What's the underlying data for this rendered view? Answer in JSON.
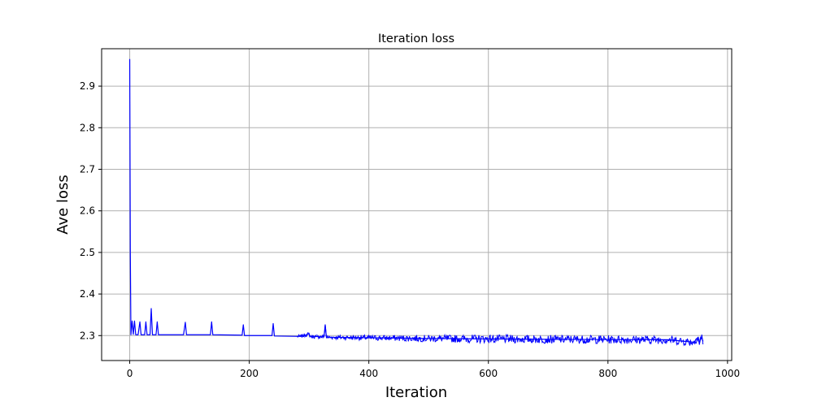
{
  "chart_data": {
    "type": "line",
    "title": "Iteration loss",
    "xlabel": "Iteration",
    "ylabel": "Ave loss",
    "xlim": [
      -47,
      1007
    ],
    "ylim": [
      2.24,
      2.99
    ],
    "xticks": [
      0,
      200,
      400,
      600,
      800,
      1000
    ],
    "yticks": [
      2.3,
      2.4,
      2.5,
      2.6,
      2.7,
      2.8,
      2.9
    ],
    "grid": true,
    "line_color": "#0000ff",
    "series": [
      {
        "points": [
          [
            0,
            2.965
          ],
          [
            1,
            2.5
          ],
          [
            2,
            2.302
          ],
          [
            4,
            2.335
          ],
          [
            6,
            2.303
          ],
          [
            8,
            2.335
          ],
          [
            10,
            2.302
          ],
          [
            14,
            2.302
          ],
          [
            17,
            2.333
          ],
          [
            19,
            2.302
          ],
          [
            25,
            2.302
          ],
          [
            27,
            2.333
          ],
          [
            29,
            2.302
          ],
          [
            34,
            2.302
          ],
          [
            36,
            2.365
          ],
          [
            38,
            2.302
          ],
          [
            44,
            2.302
          ],
          [
            46,
            2.333
          ],
          [
            48,
            2.302
          ],
          [
            90,
            2.302
          ],
          [
            93,
            2.332
          ],
          [
            95,
            2.302
          ],
          [
            135,
            2.302
          ],
          [
            137,
            2.333
          ],
          [
            139,
            2.302
          ],
          [
            188,
            2.301
          ],
          [
            190,
            2.326
          ],
          [
            192,
            2.3
          ],
          [
            238,
            2.3
          ],
          [
            240,
            2.329
          ],
          [
            242,
            2.299
          ],
          [
            286,
            2.298
          ],
          [
            300,
            2.304
          ],
          [
            302,
            2.298
          ],
          [
            325,
            2.297
          ],
          [
            327,
            2.326
          ],
          [
            329,
            2.296
          ],
          [
            500,
            2.293
          ],
          [
            700,
            2.291
          ],
          [
            900,
            2.29
          ],
          [
            945,
            2.284
          ],
          [
            947,
            2.291
          ],
          [
            951,
            2.296
          ],
          [
            953,
            2.28
          ],
          [
            955,
            2.293
          ],
          [
            957,
            2.296
          ],
          [
            959,
            2.286
          ]
        ]
      }
    ]
  }
}
